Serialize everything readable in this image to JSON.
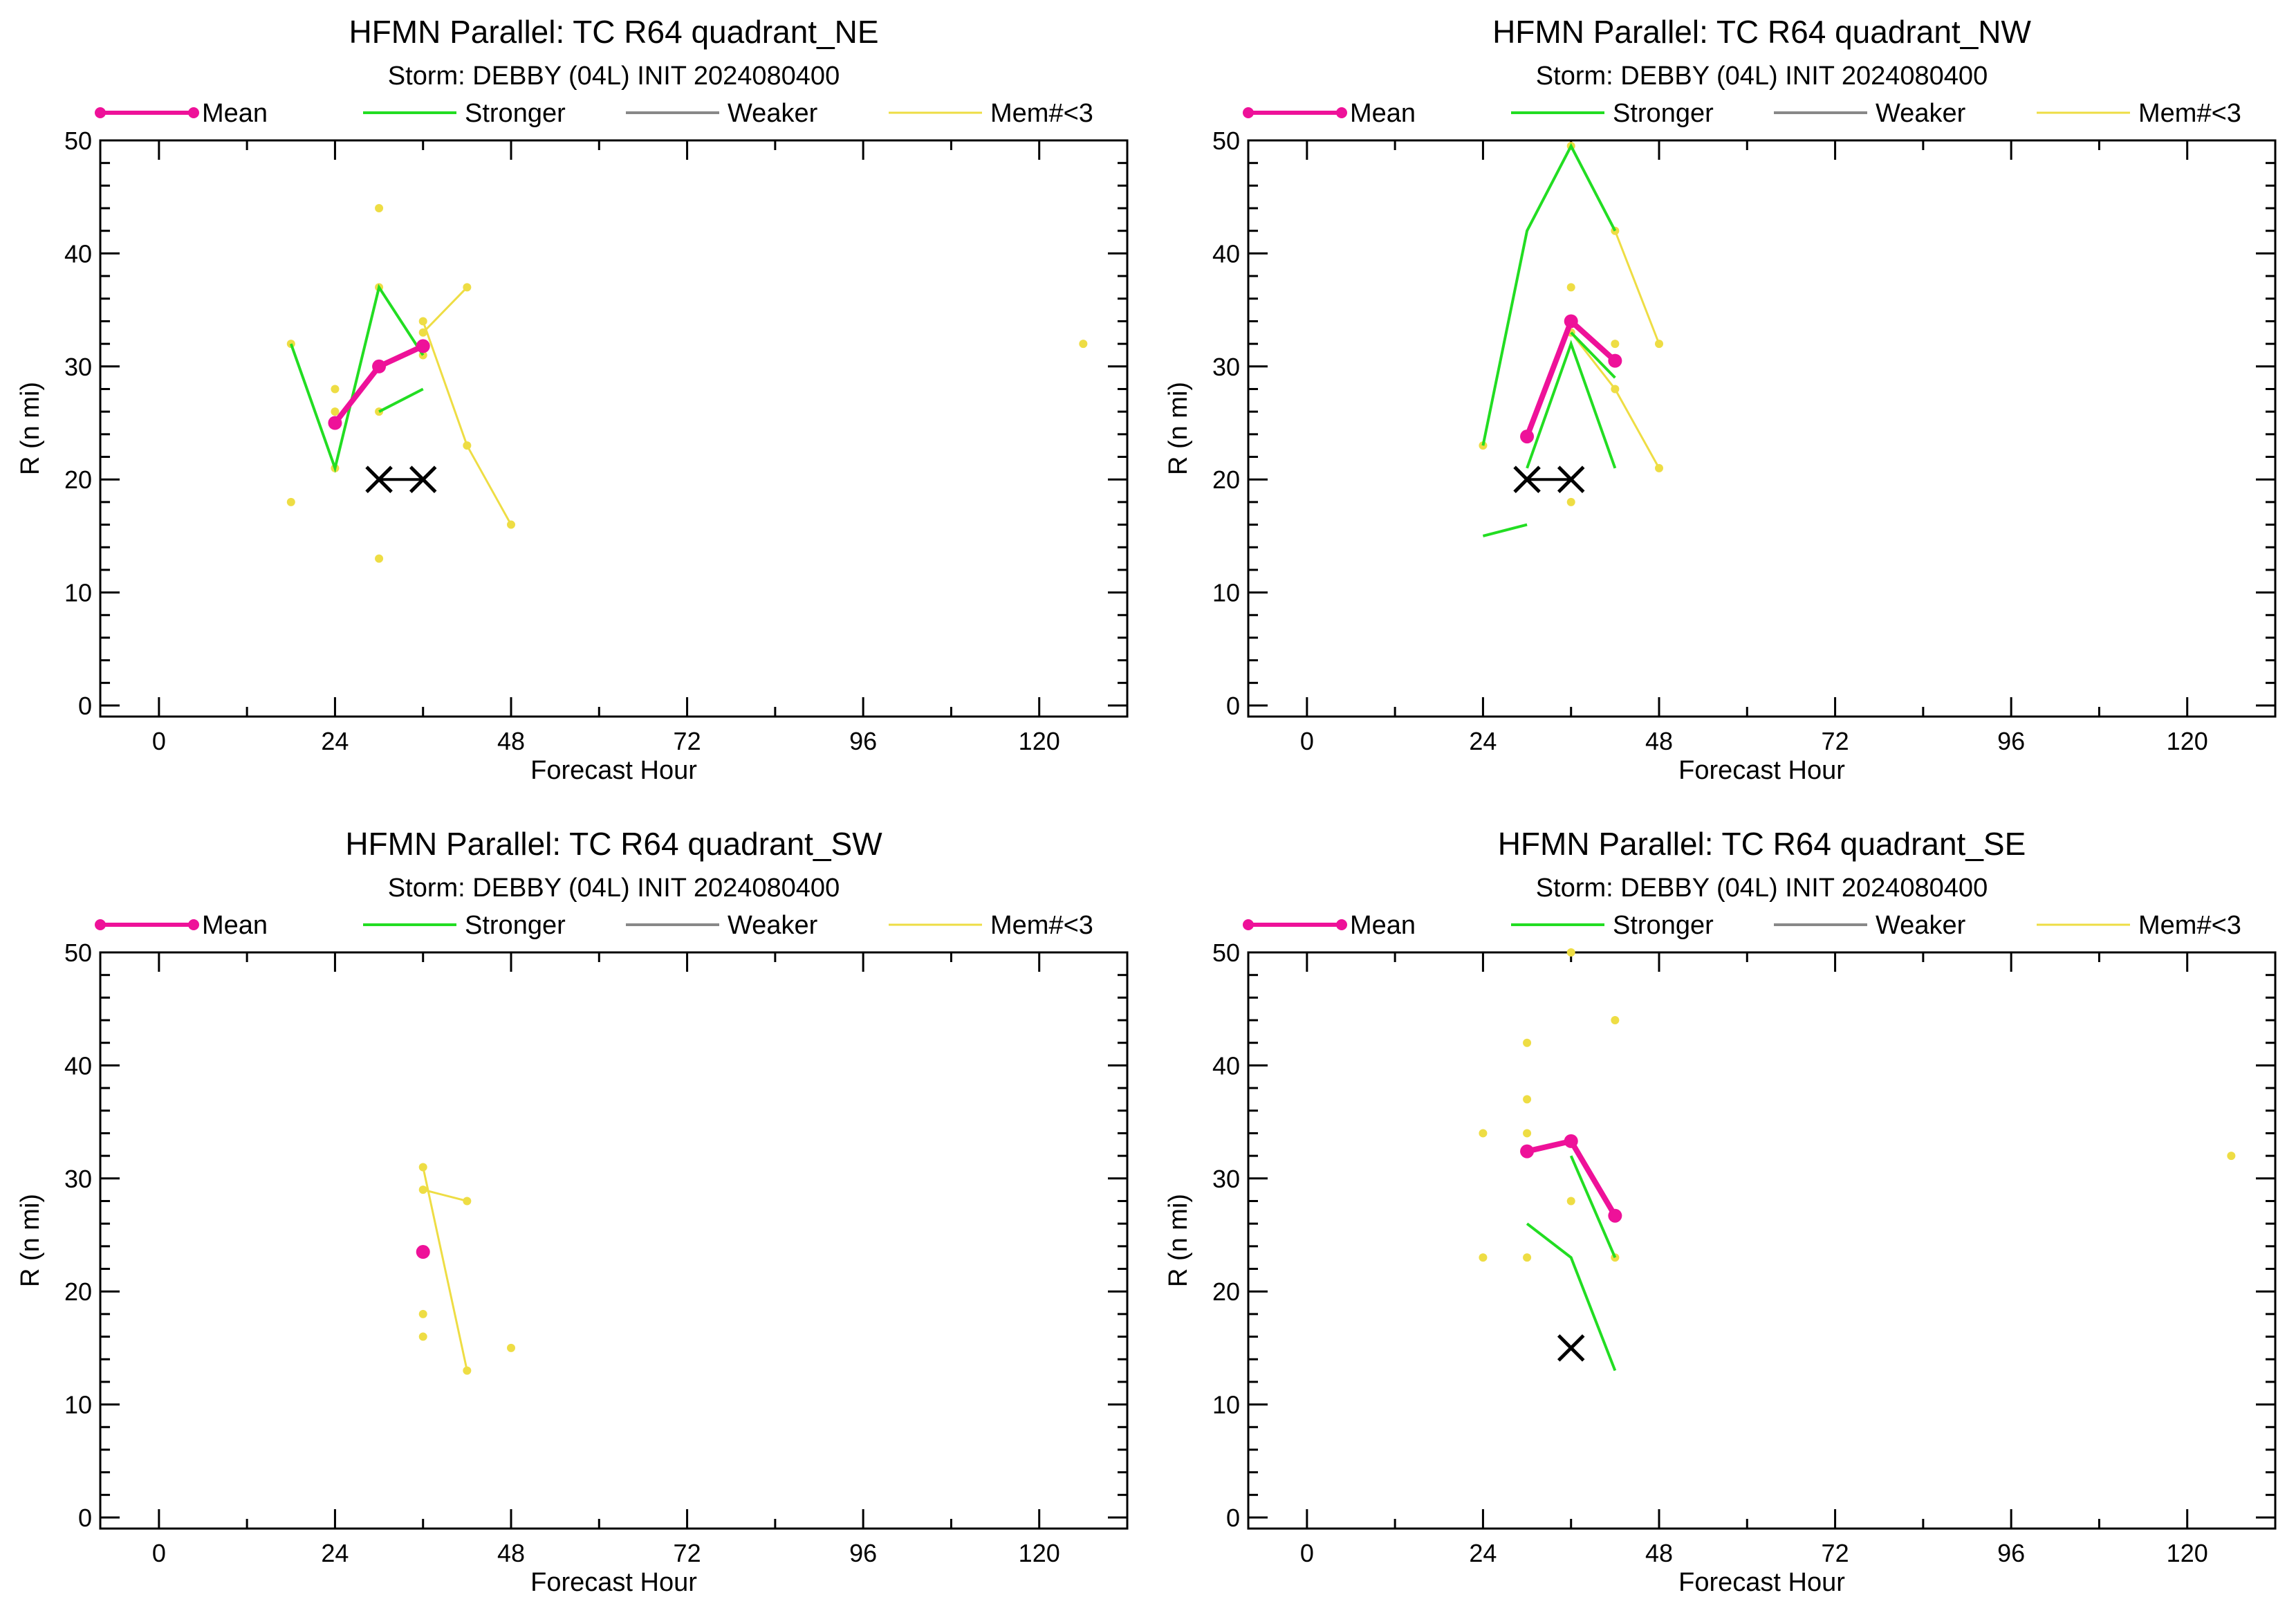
{
  "colors": {
    "mean": "#ee1199",
    "stronger": "#22dd22",
    "weaker": "#888888",
    "members": "#eedd44",
    "best_track": "#000000"
  },
  "legend": {
    "mean": "Mean",
    "stronger": "Stronger",
    "weaker": "Weaker",
    "members": "Mem#<3"
  },
  "chart_data": [
    {
      "type": "line",
      "title": "HFMN Parallel: TC  R64 quadrant_NE",
      "subtitle": "Storm: DEBBY (04L) INIT 2024080400",
      "xlabel": "Forecast Hour",
      "ylabel": "R (n mi)",
      "xlim": [
        -8,
        132
      ],
      "ylim": [
        0,
        50
      ],
      "xticks": [
        0,
        24,
        48,
        72,
        96,
        120
      ],
      "yticks": [
        0,
        10,
        20,
        30,
        40,
        50
      ],
      "series": [
        {
          "role": "members",
          "segments": [
            [
              [
                18,
                32
              ],
              [
                24,
                21
              ]
            ],
            [
              [
                36,
                34
              ],
              [
                42,
                23
              ],
              [
                48,
                16
              ]
            ],
            [
              [
                36,
                33
              ],
              [
                42,
                37
              ]
            ]
          ],
          "points": [
            [
              18,
              18
            ],
            [
              24,
              28
            ],
            [
              24,
              26
            ],
            [
              30,
              44
            ],
            [
              30,
              37
            ],
            [
              30,
              26
            ],
            [
              30,
              13
            ],
            [
              36,
              31
            ],
            [
              126,
              32
            ]
          ]
        },
        {
          "role": "stronger",
          "segments": [
            [
              [
                18,
                32
              ],
              [
                24,
                21
              ],
              [
                30,
                37
              ],
              [
                36,
                31
              ]
            ],
            [
              [
                30,
                26
              ],
              [
                36,
                28
              ]
            ]
          ]
        },
        {
          "role": "mean",
          "points": [
            [
              24,
              25
            ],
            [
              30,
              30
            ],
            [
              36,
              31.8
            ]
          ]
        },
        {
          "role": "best_track",
          "points": [
            [
              30,
              20
            ],
            [
              36,
              20
            ]
          ]
        }
      ]
    },
    {
      "type": "line",
      "title": "HFMN Parallel: TC  R64 quadrant_NW",
      "subtitle": "Storm: DEBBY (04L) INIT 2024080400",
      "xlabel": "Forecast Hour",
      "ylabel": "R (n mi)",
      "xlim": [
        -8,
        132
      ],
      "ylim": [
        0,
        50
      ],
      "xticks": [
        0,
        24,
        48,
        72,
        96,
        120
      ],
      "yticks": [
        0,
        10,
        20,
        30,
        40,
        50
      ],
      "series": [
        {
          "role": "members",
          "segments": [
            [
              [
                36,
                49.5
              ],
              [
                42,
                42
              ],
              [
                48,
                32
              ]
            ],
            [
              [
                36,
                33
              ],
              [
                42,
                28
              ],
              [
                48,
                21
              ]
            ]
          ],
          "points": [
            [
              24,
              23
            ],
            [
              36,
              37
            ],
            [
              36,
              18
            ],
            [
              42,
              32
            ]
          ]
        },
        {
          "role": "stronger",
          "segments": [
            [
              [
                24,
                23
              ],
              [
                30,
                42
              ],
              [
                36,
                49.5
              ],
              [
                42,
                42
              ]
            ],
            [
              [
                30,
                21
              ],
              [
                36,
                32
              ],
              [
                42,
                21
              ]
            ],
            [
              [
                24,
                15
              ],
              [
                30,
                16
              ]
            ],
            [
              [
                36,
                33
              ],
              [
                42,
                29
              ]
            ]
          ]
        },
        {
          "role": "mean",
          "points": [
            [
              30,
              23.8
            ],
            [
              36,
              34
            ],
            [
              42,
              30.5
            ]
          ]
        },
        {
          "role": "best_track",
          "points": [
            [
              30,
              20
            ],
            [
              36,
              20
            ]
          ]
        }
      ]
    },
    {
      "type": "line",
      "title": "HFMN Parallel: TC  R64 quadrant_SW",
      "subtitle": "Storm: DEBBY (04L) INIT 2024080400",
      "xlabel": "Forecast Hour",
      "ylabel": "R (n mi)",
      "xlim": [
        -8,
        132
      ],
      "ylim": [
        0,
        50
      ],
      "xticks": [
        0,
        24,
        48,
        72,
        96,
        120
      ],
      "yticks": [
        0,
        10,
        20,
        30,
        40,
        50
      ],
      "series": [
        {
          "role": "members",
          "segments": [
            [
              [
                36,
                31
              ],
              [
                42,
                13
              ]
            ],
            [
              [
                36,
                29
              ],
              [
                42,
                28
              ]
            ]
          ],
          "points": [
            [
              36,
              18
            ],
            [
              36,
              16
            ],
            [
              48,
              15
            ]
          ]
        },
        {
          "role": "stronger",
          "segments": []
        },
        {
          "role": "mean",
          "points": [
            [
              36,
              23.5
            ]
          ]
        },
        {
          "role": "best_track",
          "points": []
        }
      ]
    },
    {
      "type": "line",
      "title": "HFMN Parallel: TC  R64 quadrant_SE",
      "subtitle": "Storm: DEBBY (04L) INIT 2024080400",
      "xlabel": "Forecast Hour",
      "ylabel": "R (n mi)",
      "xlim": [
        -8,
        132
      ],
      "ylim": [
        0,
        50
      ],
      "xticks": [
        0,
        24,
        48,
        72,
        96,
        120
      ],
      "yticks": [
        0,
        10,
        20,
        30,
        40,
        50
      ],
      "series": [
        {
          "role": "members",
          "segments": [],
          "points": [
            [
              24,
              34
            ],
            [
              24,
              23
            ],
            [
              30,
              42
            ],
            [
              30,
              37
            ],
            [
              30,
              34
            ],
            [
              30,
              23
            ],
            [
              36,
              50
            ],
            [
              36,
              28
            ],
            [
              42,
              44
            ],
            [
              42,
              23
            ],
            [
              126,
              32
            ]
          ]
        },
        {
          "role": "stronger",
          "segments": [
            [
              [
                30,
                26
              ],
              [
                36,
                23
              ],
              [
                42,
                13
              ]
            ],
            [
              [
                36,
                32
              ],
              [
                42,
                23
              ]
            ]
          ]
        },
        {
          "role": "mean",
          "points": [
            [
              30,
              32.4
            ],
            [
              36,
              33.3
            ],
            [
              42,
              26.7
            ]
          ]
        },
        {
          "role": "best_track",
          "points": [
            [
              36,
              15
            ]
          ]
        }
      ]
    }
  ]
}
